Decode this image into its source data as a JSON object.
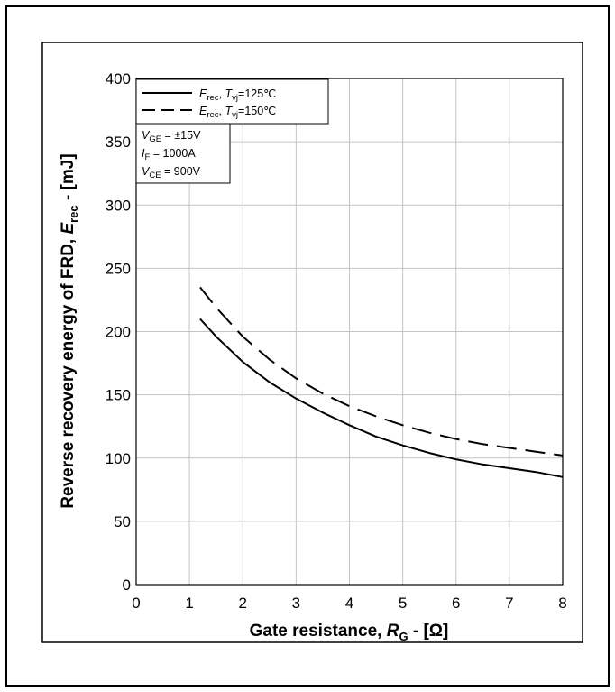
{
  "chart_data": {
    "type": "line",
    "xlabel": {
      "main": "Gate resistance, ",
      "var": "R",
      "sub": "G",
      "unit": " - [Ω]"
    },
    "ylabel": {
      "main": "Reverse recovery energy of FRD, ",
      "var": "E",
      "sub": "rec",
      "unit": " - [mJ]"
    },
    "xlim": [
      0,
      8
    ],
    "ylim": [
      0,
      400
    ],
    "xticks": [
      0,
      1,
      2,
      3,
      4,
      5,
      6,
      7,
      8
    ],
    "yticks": [
      0,
      50,
      100,
      150,
      200,
      250,
      300,
      350,
      400
    ],
    "grid": true,
    "series": [
      {
        "var": "E",
        "sub": "rec",
        "sep": ", ",
        "var2": "T",
        "sub2": "vj",
        "cond": "=125℃",
        "style": "solid",
        "color": "#000000",
        "x": [
          1.2,
          1.5,
          2,
          2.5,
          3,
          3.5,
          4,
          4.5,
          5,
          5.5,
          6,
          6.5,
          7,
          7.5,
          8
        ],
        "y": [
          210,
          196,
          176,
          160,
          147,
          136,
          126,
          117,
          110,
          104,
          99,
          95,
          92,
          89,
          85
        ]
      },
      {
        "var": "E",
        "sub": "rec",
        "sep": ", ",
        "var2": "T",
        "sub2": "vj",
        "cond": "=150℃",
        "style": "dashed",
        "color": "#000000",
        "x": [
          1.2,
          1.5,
          2,
          2.5,
          3,
          3.5,
          4,
          4.5,
          5,
          5.5,
          6,
          6.5,
          7,
          7.5,
          8
        ],
        "y": [
          235,
          219,
          196,
          178,
          163,
          151,
          141,
          133,
          126,
          120,
          115,
          111,
          108,
          105,
          102
        ]
      }
    ],
    "conditions": [
      {
        "var": "V",
        "sub": "GE",
        "val": " = ±15V"
      },
      {
        "var": "I",
        "sub": "F",
        "val": " = 1000A"
      },
      {
        "var": "V",
        "sub": "CE",
        "val": " = 900V"
      }
    ],
    "legend_position": "top-left"
  }
}
